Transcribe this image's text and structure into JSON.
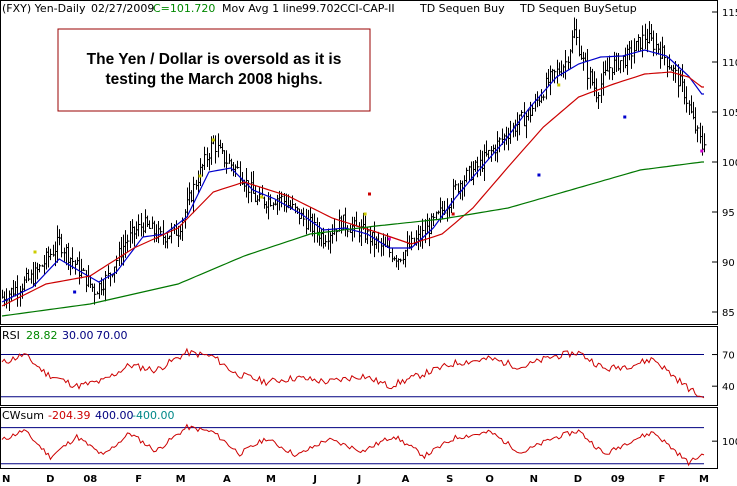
{
  "header": {
    "symbol": "(FXY) Yen-Daily",
    "date": "02/27/2009",
    "close": "C=101.720",
    "mov_avg": "Mov Avg 1 line",
    "mov_avg_value": "99.702",
    "cci": "CCI-CAP-II",
    "td1": "TD Sequen Buy",
    "td2": "TD Sequen BuySetup"
  },
  "annotation": {
    "line1": "The Yen / Dollar is oversold as it is",
    "line2": "testing the March 2008 highs."
  },
  "colors": {
    "price_bars": "#000000",
    "fast_ma": "#0000cc",
    "mid_ma": "#cc0000",
    "slow_ma": "#007700",
    "rsi_line": "#cc0000",
    "rsi_bands": "#000080",
    "cw_line": "#cc0000",
    "cw_bands": "#000080",
    "annotation_border": "#990000",
    "setup_yellow": "#cccc00",
    "setup_blue": "#0000cc",
    "setup_red": "#cc0000",
    "setup_magenta": "#cc00cc",
    "setup_green": "#00aa00"
  },
  "rsi_panel": {
    "label": "RSI",
    "value": "28.82",
    "low": "30.00",
    "high": "70.00"
  },
  "cw_panel": {
    "label": "CWsum",
    "value": "-204.39",
    "high": "400.00",
    "low": "-400.00"
  },
  "chart_data": [
    {
      "type": "ohlc",
      "x_tick_labels": [
        "N",
        "D",
        "08",
        "F",
        "M",
        "A",
        "M",
        "J",
        "J",
        "A",
        "S",
        "O",
        "N",
        "D",
        "09",
        "F",
        "M"
      ],
      "y_tick_labels": [
        "85",
        "90",
        "95",
        "100",
        "105",
        "110",
        "115"
      ],
      "ylim": [
        84,
        116
      ],
      "last_close": 101.72,
      "price_path": [
        [
          0,
          86.5
        ],
        [
          14,
          88.5
        ],
        [
          26,
          92.0
        ],
        [
          34,
          89.5
        ],
        [
          42,
          87.2
        ],
        [
          48,
          88.5
        ],
        [
          56,
          92.0
        ],
        [
          64,
          93.8
        ],
        [
          72,
          92.5
        ],
        [
          80,
          93.2
        ],
        [
          88,
          98.0
        ],
        [
          96,
          102.0
        ],
        [
          100,
          100.5
        ],
        [
          108,
          99.0
        ],
        [
          116,
          96.0
        ],
        [
          126,
          96.5
        ],
        [
          136,
          94.5
        ],
        [
          146,
          92.5
        ],
        [
          154,
          94.0
        ],
        [
          164,
          93.0
        ],
        [
          172,
          91.5
        ],
        [
          180,
          90.5
        ],
        [
          190,
          92.5
        ],
        [
          198,
          94.5
        ],
        [
          208,
          98.0
        ],
        [
          216,
          99.5
        ],
        [
          222,
          101.0
        ],
        [
          230,
          103.0
        ],
        [
          240,
          105.0
        ],
        [
          248,
          108.0
        ],
        [
          256,
          110.0
        ],
        [
          260,
          113.0
        ],
        [
          264,
          110.0
        ],
        [
          270,
          107.0
        ],
        [
          276,
          109.5
        ],
        [
          284,
          110.5
        ],
        [
          292,
          112.5
        ],
        [
          298,
          111.5
        ],
        [
          304,
          109.5
        ],
        [
          310,
          107.0
        ],
        [
          314,
          104.0
        ],
        [
          318,
          101.5
        ]
      ],
      "series": [
        {
          "name": "fast_ma",
          "values": [
            [
              0,
              86.0
            ],
            [
              14,
              87.5
            ],
            [
              26,
              90.3
            ],
            [
              36,
              89.0
            ],
            [
              44,
              88.0
            ],
            [
              52,
              89.0
            ],
            [
              64,
              92.5
            ],
            [
              74,
              92.8
            ],
            [
              84,
              94.5
            ],
            [
              94,
              99.0
            ],
            [
              104,
              99.4
            ],
            [
              114,
              97.2
            ],
            [
              124,
              96.3
            ],
            [
              136,
              94.8
            ],
            [
              146,
              93.2
            ],
            [
              156,
              93.4
            ],
            [
              166,
              92.8
            ],
            [
              176,
              91.4
            ],
            [
              186,
              91.4
            ],
            [
              196,
              93.4
            ],
            [
              206,
              96.4
            ],
            [
              216,
              99.0
            ],
            [
              228,
              102.0
            ],
            [
              240,
              105.5
            ],
            [
              252,
              108.5
            ],
            [
              262,
              109.8
            ],
            [
              272,
              110.5
            ],
            [
              282,
              110.6
            ],
            [
              292,
              111.2
            ],
            [
              302,
              110.6
            ],
            [
              312,
              108.6
            ],
            [
              318,
              106.8
            ]
          ]
        },
        {
          "name": "mid_ma",
          "values": [
            [
              0,
              85.6
            ],
            [
              20,
              87.8
            ],
            [
              40,
              88.6
            ],
            [
              60,
              91.4
            ],
            [
              80,
              93.4
            ],
            [
              96,
              97.0
            ],
            [
              110,
              98.0
            ],
            [
              130,
              96.6
            ],
            [
              150,
              94.4
            ],
            [
              170,
              93.0
            ],
            [
              186,
              91.8
            ],
            [
              200,
              92.8
            ],
            [
              214,
              95.4
            ],
            [
              230,
              99.5
            ],
            [
              246,
              103.5
            ],
            [
              262,
              106.5
            ],
            [
              278,
              107.8
            ],
            [
              292,
              108.8
            ],
            [
              304,
              109.0
            ],
            [
              312,
              108.5
            ],
            [
              318,
              107.5
            ]
          ]
        },
        {
          "name": "slow_ma",
          "values": [
            [
              0,
              84.6
            ],
            [
              40,
              85.8
            ],
            [
              80,
              87.8
            ],
            [
              110,
              90.6
            ],
            [
              140,
              92.8
            ],
            [
              170,
              93.6
            ],
            [
              200,
              94.3
            ],
            [
              230,
              95.4
            ],
            [
              260,
              97.3
            ],
            [
              290,
              99.2
            ],
            [
              318,
              100.0
            ]
          ]
        }
      ]
    },
    {
      "type": "line",
      "title": "RSI",
      "y_tick_labels": [
        "40",
        "70"
      ],
      "ylim": [
        25,
        80
      ],
      "bands": [
        30,
        70
      ],
      "series": [
        {
          "values": [
            [
              0,
              62
            ],
            [
              10,
              70
            ],
            [
              20,
              52
            ],
            [
              34,
              40
            ],
            [
              46,
              45
            ],
            [
              58,
              60
            ],
            [
              70,
              55
            ],
            [
              84,
              72
            ],
            [
              96,
              68
            ],
            [
              106,
              52
            ],
            [
              120,
              44
            ],
            [
              134,
              48
            ],
            [
              148,
              44
            ],
            [
              164,
              50
            ],
            [
              176,
              40
            ],
            [
              192,
              52
            ],
            [
              206,
              62
            ],
            [
              222,
              66
            ],
            [
              236,
              58
            ],
            [
              250,
              68
            ],
            [
              262,
              72
            ],
            [
              274,
              56
            ],
            [
              286,
              60
            ],
            [
              296,
              66
            ],
            [
              306,
              48
            ],
            [
              312,
              38
            ],
            [
              318,
              29
            ]
          ]
        }
      ]
    },
    {
      "type": "line",
      "title": "CWsum",
      "y_tick_labels": [
        "100"
      ],
      "ylim": [
        -450,
        480
      ],
      "bands": [
        400,
        -400
      ],
      "series": [
        {
          "values": [
            [
              0,
              120
            ],
            [
              10,
              340
            ],
            [
              22,
              -250
            ],
            [
              34,
              200
            ],
            [
              46,
              -220
            ],
            [
              58,
              280
            ],
            [
              70,
              -120
            ],
            [
              84,
              410
            ],
            [
              96,
              300
            ],
            [
              108,
              -180
            ],
            [
              120,
              160
            ],
            [
              134,
              -220
            ],
            [
              148,
              140
            ],
            [
              164,
              -120
            ],
            [
              178,
              220
            ],
            [
              192,
              -230
            ],
            [
              206,
              180
            ],
            [
              222,
              300
            ],
            [
              236,
              -160
            ],
            [
              250,
              160
            ],
            [
              262,
              330
            ],
            [
              274,
              -200
            ],
            [
              286,
              120
            ],
            [
              296,
              300
            ],
            [
              306,
              -120
            ],
            [
              312,
              -380
            ],
            [
              318,
              -204
            ]
          ]
        }
      ]
    }
  ]
}
